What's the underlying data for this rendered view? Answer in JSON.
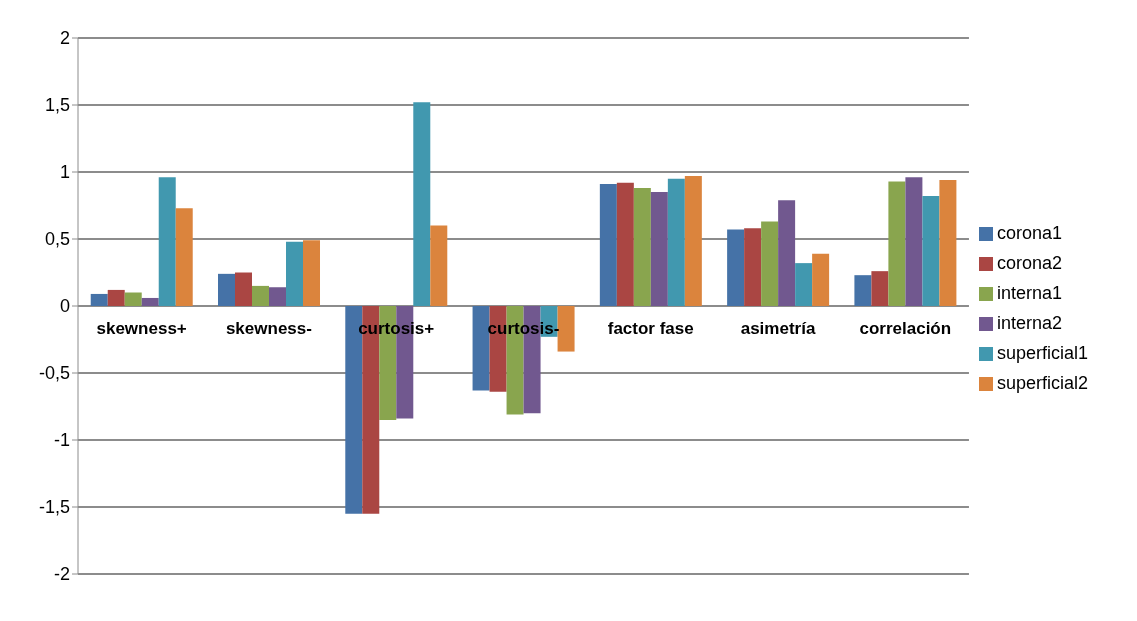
{
  "chart_data": {
    "type": "bar",
    "categories": [
      "skewness+",
      "skewness-",
      "curtosis+",
      "curtosis-",
      "factor fase",
      "asimetría",
      "correlación"
    ],
    "series": [
      {
        "name": "corona1",
        "color": "#4572a7",
        "values": [
          0.09,
          0.24,
          -1.55,
          -0.63,
          0.91,
          0.57,
          0.23
        ]
      },
      {
        "name": "corona2",
        "color": "#aa4643",
        "values": [
          0.12,
          0.25,
          -1.55,
          -0.64,
          0.92,
          0.58,
          0.26
        ]
      },
      {
        "name": "interna1",
        "color": "#89a54e",
        "values": [
          0.1,
          0.15,
          -0.85,
          -0.81,
          0.88,
          0.63,
          0.93
        ]
      },
      {
        "name": "interna2",
        "color": "#71588f",
        "values": [
          0.06,
          0.14,
          -0.84,
          -0.8,
          0.85,
          0.79,
          0.96
        ]
      },
      {
        "name": "superficial1",
        "color": "#4198af",
        "values": [
          0.96,
          0.48,
          1.52,
          -0.23,
          0.95,
          0.32,
          0.82
        ]
      },
      {
        "name": "superficial2",
        "color": "#db843d",
        "values": [
          0.73,
          0.49,
          0.6,
          -0.34,
          0.97,
          0.39,
          0.94
        ]
      }
    ],
    "ylim": [
      -2,
      2
    ],
    "yticks": [
      {
        "value": -2,
        "label": "-2"
      },
      {
        "value": -1.5,
        "label": "-1,5"
      },
      {
        "value": -1,
        "label": "-1"
      },
      {
        "value": -0.5,
        "label": "-0,5"
      },
      {
        "value": 0,
        "label": "0"
      },
      {
        "value": 0.5,
        "label": "0,5"
      },
      {
        "value": 1,
        "label": "1"
      },
      {
        "value": 1.5,
        "label": "1,5"
      },
      {
        "value": 2,
        "label": "2"
      }
    ],
    "grid": "y",
    "legend": "right"
  }
}
